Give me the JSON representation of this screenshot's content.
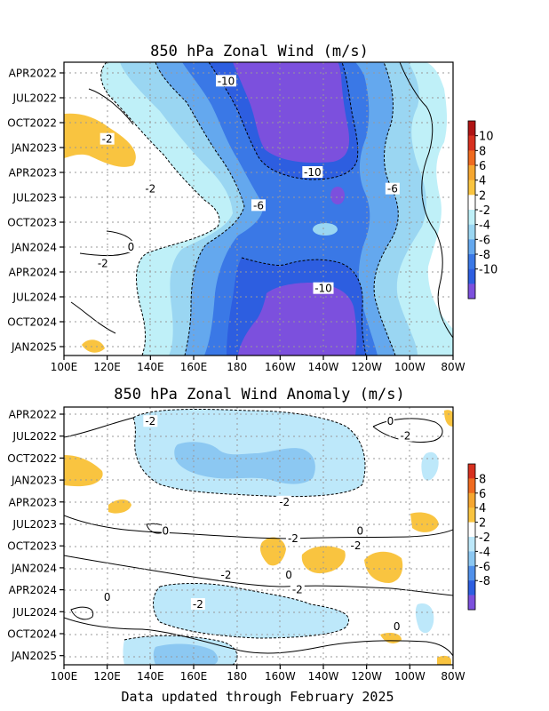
{
  "footer": "Data updated through February 2025",
  "chart_data": [
    {
      "type": "heatmap",
      "title": "850 hPa Zonal Wind (m/s)",
      "x_ticks": [
        "100E",
        "120E",
        "140E",
        "160E",
        "180",
        "160W",
        "140W",
        "120W",
        "100W",
        "80W"
      ],
      "y_ticks": [
        "APR2022",
        "JUL2022",
        "OCT2022",
        "JAN2023",
        "APR2023",
        "JUL2023",
        "OCT2023",
        "JAN2024",
        "APR2024",
        "JUL2024",
        "OCT2024",
        "JAN2025"
      ],
      "x_range": [
        "100E",
        "80W"
      ],
      "y_range": [
        "APR2022",
        "FEB2025"
      ],
      "grid": true,
      "colorbar_levels": [
        "10",
        "8",
        "6",
        "4",
        "2",
        "-2",
        "-4",
        "-6",
        "-8",
        "-10"
      ],
      "colorbar_colors": [
        "#b01414",
        "#d7301f",
        "#ef6a1f",
        "#f5a630",
        "#f9c440",
        "#ffffff",
        "#bff0f8",
        "#9ad6f2",
        "#64a8ee",
        "#3a78e6",
        "#2d5ee0",
        "#7c50dd"
      ],
      "contour_labels": [
        {
          "text": "-10",
          "x": 175,
          "y": "MAY2022"
        },
        {
          "text": "-2",
          "x": 120,
          "y": "DEC2022"
        },
        {
          "text": "-10",
          "x": 215,
          "y": "APR2023"
        },
        {
          "text": "-6",
          "x": 252,
          "y": "JUN2023"
        },
        {
          "text": "-2",
          "x": 140,
          "y": "JUN2023"
        },
        {
          "text": "-6",
          "x": 190,
          "y": "AUG2023"
        },
        {
          "text": "0",
          "x": 131,
          "y": "JAN2024"
        },
        {
          "text": "-2",
          "x": 118,
          "y": "MAR2024"
        },
        {
          "text": "-10",
          "x": 220,
          "y": "JUN2024"
        }
      ]
    },
    {
      "type": "heatmap",
      "title": "850 hPa Zonal Wind Anomaly (m/s)",
      "x_ticks": [
        "100E",
        "120E",
        "140E",
        "160E",
        "180",
        "160W",
        "140W",
        "120W",
        "100W",
        "80W"
      ],
      "y_ticks": [
        "APR2022",
        "JUL2022",
        "OCT2022",
        "JAN2023",
        "APR2023",
        "JUL2023",
        "OCT2023",
        "JAN2024",
        "APR2024",
        "JUL2024",
        "OCT2024",
        "JAN2025"
      ],
      "x_range": [
        "100E",
        "80W"
      ],
      "y_range": [
        "APR2022",
        "FEB2025"
      ],
      "grid": true,
      "colorbar_levels": [
        "8",
        "6",
        "4",
        "2",
        "-2",
        "-4",
        "-6",
        "-8"
      ],
      "colorbar_colors": [
        "#d7301f",
        "#ef6a1f",
        "#f5a630",
        "#f9c440",
        "#ffffff",
        "#bde8fa",
        "#8cc8f2",
        "#5090ea",
        "#2d5ee0",
        "#7c50dd"
      ],
      "contour_labels": [
        {
          "text": "-2",
          "x": 140,
          "y": "MAY2022"
        },
        {
          "text": "0",
          "x": 251,
          "y": "MAY2022"
        },
        {
          "text": "-2",
          "x": 258,
          "y": "JUL2022"
        },
        {
          "text": "-2",
          "x": 202,
          "y": "APR2023"
        },
        {
          "text": "0",
          "x": 147,
          "y": "AUG2023"
        },
        {
          "text": "0",
          "x": 237,
          "y": "AUG2023"
        },
        {
          "text": "-2",
          "x": 206,
          "y": "SEP2023"
        },
        {
          "text": "-2",
          "x": 235,
          "y": "OCT2023"
        },
        {
          "text": "0",
          "x": 204,
          "y": "FEB2024"
        },
        {
          "text": "-2",
          "x": 175,
          "y": "FEB2024"
        },
        {
          "text": "-2",
          "x": 208,
          "y": "APR2024"
        },
        {
          "text": "0",
          "x": 120,
          "y": "MAY2024"
        },
        {
          "text": "-2",
          "x": 162,
          "y": "JUN2024"
        },
        {
          "text": "0",
          "x": 254,
          "y": "SEP2024"
        }
      ]
    }
  ]
}
